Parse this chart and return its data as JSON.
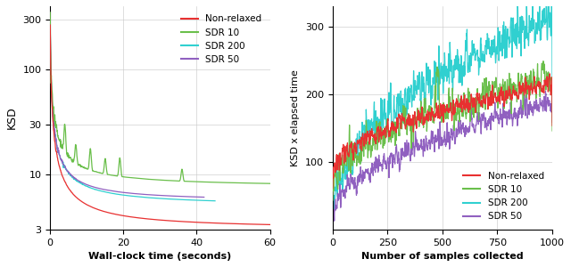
{
  "colors": {
    "non_relaxed": "#e83030",
    "sdr10": "#6abf4b",
    "sdr200": "#30d0d0",
    "sdr50": "#9060c0"
  },
  "left": {
    "xlabel": "Wall-clock time (seconds)",
    "ylabel": "KSD",
    "xlim": [
      0,
      60
    ],
    "ylim_log": [
      3,
      400
    ],
    "yticks": [
      3,
      10,
      30,
      100,
      300
    ],
    "xticks": [
      0,
      20,
      40,
      60
    ],
    "legend_labels": [
      "Non-relaxed",
      "SDR 10",
      "SDR 200",
      "SDR 50"
    ]
  },
  "right": {
    "xlabel": "Number of samples collected",
    "ylabel": "KSD x elapsed time",
    "xlim": [
      0,
      1000
    ],
    "ylim": [
      0,
      330
    ],
    "yticks": [
      100,
      200,
      300
    ],
    "xticks": [
      0,
      250,
      500,
      750,
      1000
    ],
    "legend_labels": [
      "Non-relaxed",
      "SDR 10",
      "SDR 200",
      "SDR 50"
    ]
  }
}
